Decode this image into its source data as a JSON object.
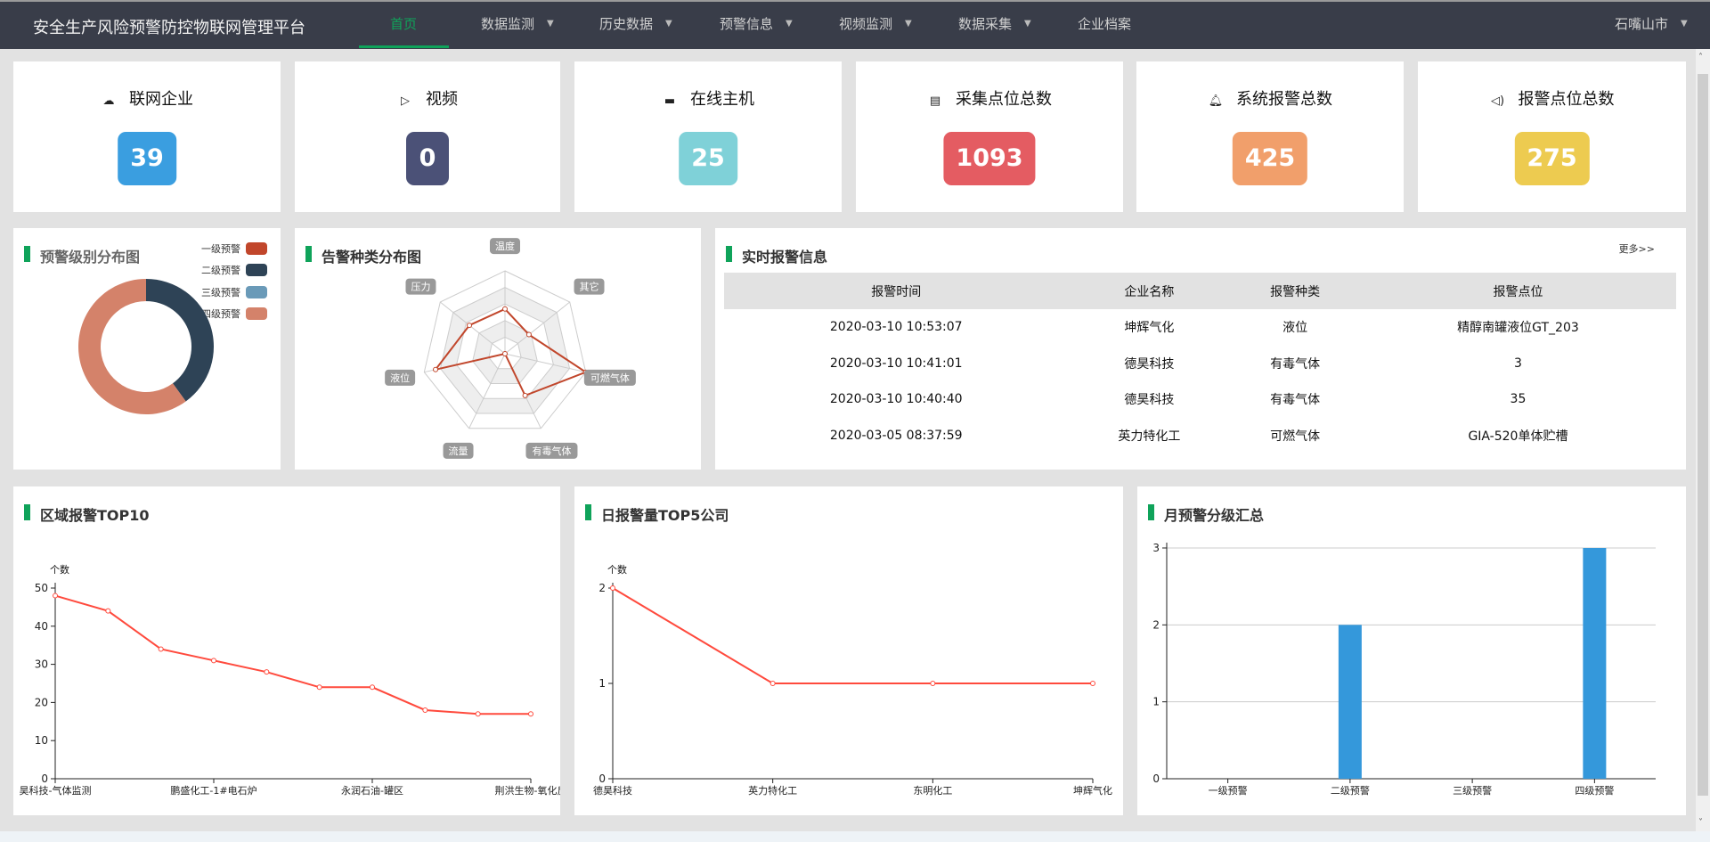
{
  "header": {
    "title": "安全生产风险预警防控物联网管理平台",
    "nav": [
      {
        "label": "首页",
        "active": true,
        "dropdown": false
      },
      {
        "label": "数据监测",
        "dropdown": true
      },
      {
        "label": "历史数据",
        "dropdown": true
      },
      {
        "label": "预警信息",
        "dropdown": true
      },
      {
        "label": "视频监测",
        "dropdown": true
      },
      {
        "label": "数据采集",
        "dropdown": true
      },
      {
        "label": "企业档案",
        "dropdown": false
      }
    ],
    "region": "石嘴山市",
    "accent": "#0fa35a"
  },
  "stats": [
    {
      "label": "联网企业",
      "value": "39",
      "icon": "cloud-upload-icon",
      "color": "#3a9ee0"
    },
    {
      "label": "视频",
      "value": "0",
      "icon": "video-icon",
      "color": "#4b5177"
    },
    {
      "label": "在线主机",
      "value": "25",
      "icon": "window-icon",
      "color": "#7fd1d8"
    },
    {
      "label": "采集点位总数",
      "value": "1093",
      "icon": "clipboard-icon",
      "color": "#e45c62"
    },
    {
      "label": "系统报警总数",
      "value": "425",
      "icon": "bell-icon",
      "color": "#f19f6b"
    },
    {
      "label": "报警点位总数",
      "value": "275",
      "icon": "speaker-icon",
      "color": "#edcb50"
    }
  ],
  "panels": {
    "level_dist": "预警级别分布图",
    "type_dist": "告警种类分布图",
    "realtime": "实时报警信息",
    "more": "更多>>",
    "region_top": "区域报警TOP10",
    "daily_top": "日报警量TOP5公司",
    "monthly": "月预警分级汇总"
  },
  "alarm_table": {
    "columns": [
      "报警时间",
      "企业名称",
      "报警种类",
      "报警点位"
    ],
    "rows": [
      [
        "2020-03-10 10:53:07",
        "坤辉气化",
        "液位",
        "精醇南罐液位GT_203"
      ],
      [
        "2020-03-10 10:41:01",
        "德昊科技",
        "有毒气体",
        "3"
      ],
      [
        "2020-03-10 10:40:40",
        "德昊科技",
        "有毒气体",
        "35"
      ],
      [
        "2020-03-05 08:37:59",
        "英力特化工",
        "可燃气体",
        "GIA-520单体贮槽"
      ]
    ]
  },
  "chart_data": [
    {
      "type": "pie",
      "donut": true,
      "categories": [
        "一级预警",
        "二级预警",
        "三级预警",
        "四级预警"
      ],
      "values": [
        0,
        2,
        0,
        3
      ],
      "colors": [
        "#c1462b",
        "#2e4356",
        "#6a9ab8",
        "#d4826a"
      ],
      "legend": "top-right"
    },
    {
      "type": "radar",
      "indicators": [
        "温度",
        "其它",
        "可燃气体",
        "有毒气体",
        "流量",
        "液位",
        "压力"
      ],
      "values": [
        0.54,
        0.37,
        1.0,
        0.56,
        0,
        0.86,
        0.55
      ],
      "max": 1,
      "color": "#c1462b"
    },
    {
      "type": "line",
      "ylabel": "个数",
      "categories": [
        "昊科技-气体监测",
        "",
        "",
        "鹏盛化工-1#电石炉",
        "",
        "",
        "永润石油-罐区",
        "",
        "",
        "荆洪生物-氧化反"
      ],
      "values": [
        48,
        44,
        34,
        31,
        28,
        24,
        24,
        18,
        17,
        17
      ],
      "ylim": [
        0,
        50
      ],
      "yticks": [
        0,
        10,
        20,
        30,
        40,
        50
      ],
      "color": "#ff4a3d"
    },
    {
      "type": "line",
      "ylabel": "个数",
      "categories": [
        "德昊科技",
        "英力特化工",
        "东明化工",
        "坤辉气化"
      ],
      "values": [
        2,
        1,
        1,
        1
      ],
      "ylim": [
        0,
        2
      ],
      "yticks": [
        0,
        1,
        2
      ],
      "color": "#ff4a3d"
    },
    {
      "type": "bar",
      "categories": [
        "一级预警",
        "二级预警",
        "三级预警",
        "四级预警"
      ],
      "values": [
        0,
        2,
        0,
        3
      ],
      "ylim": [
        0,
        3
      ],
      "yticks": [
        0,
        1,
        2,
        3
      ],
      "grid": true,
      "color": "#3498db"
    }
  ]
}
